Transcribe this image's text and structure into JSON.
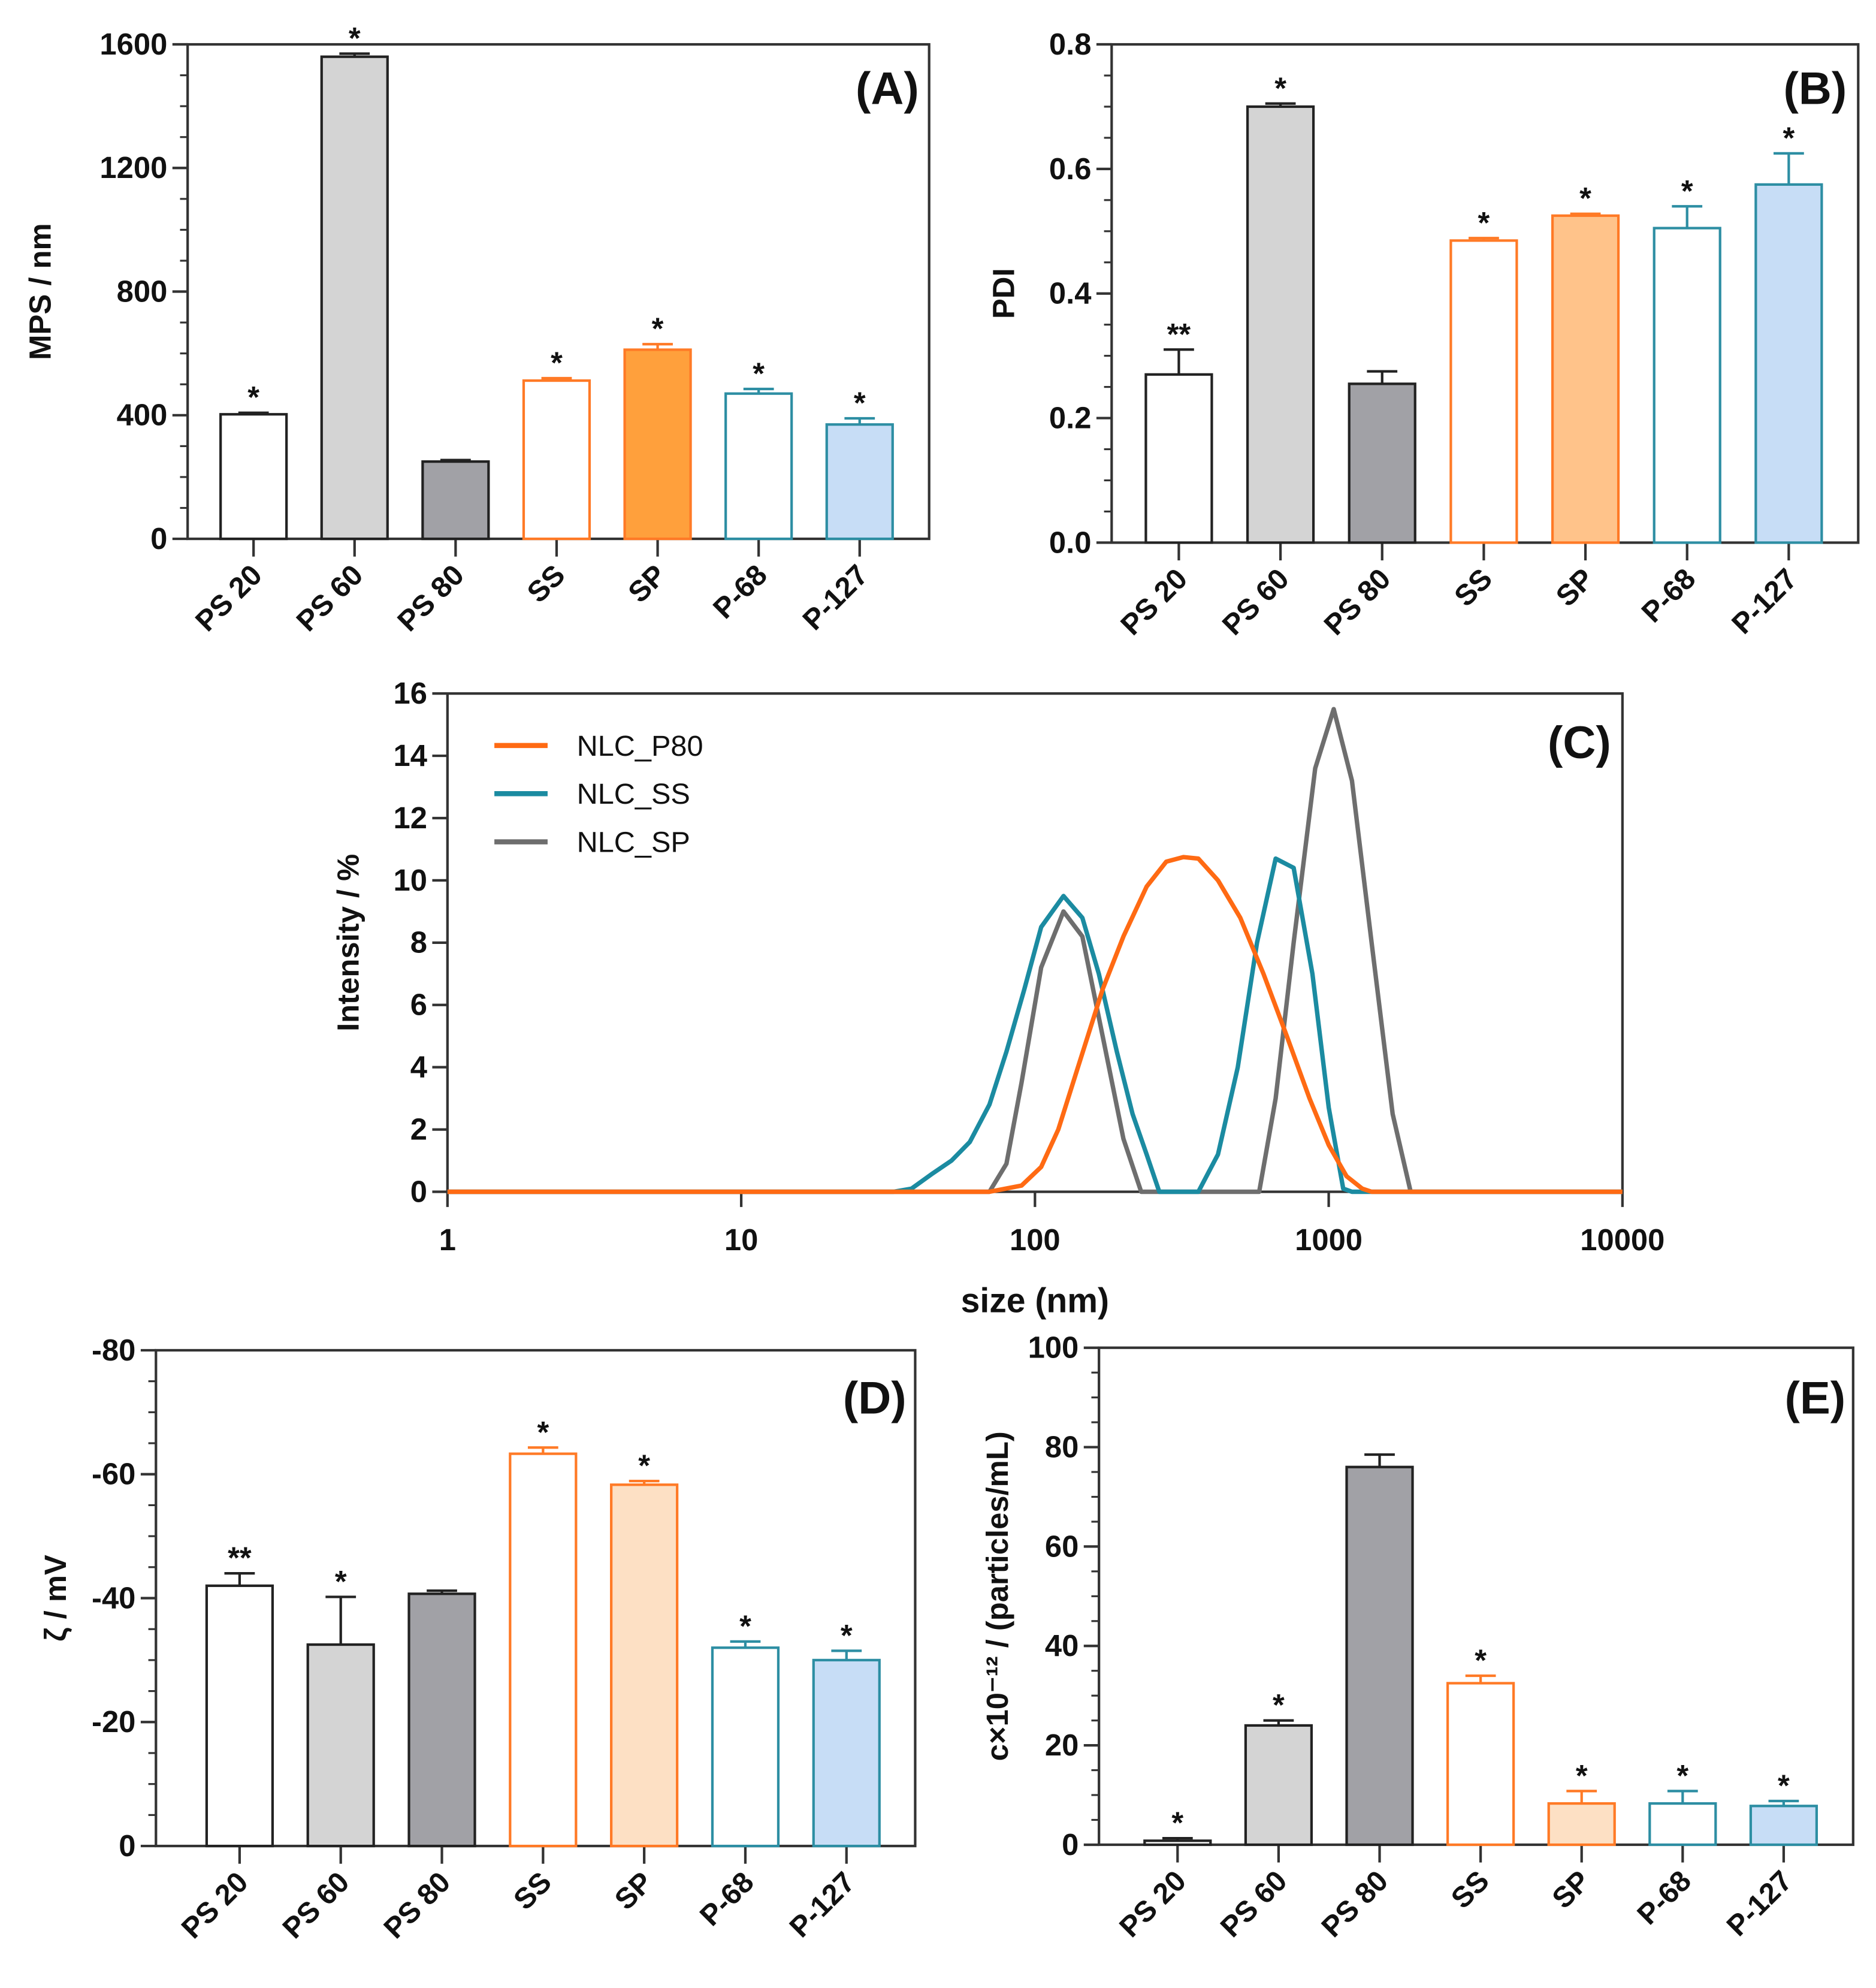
{
  "chart_data": [
    {
      "type": "bar",
      "panel": "(A)",
      "ylabel": "MPS / nm",
      "categories": [
        "PS 20",
        "PS 60",
        "PS 80",
        "SS",
        "SP",
        "P-68",
        "P-127"
      ],
      "values": [
        403,
        1560,
        250,
        512,
        612,
        470,
        370
      ],
      "errors": [
        5,
        10,
        5,
        8,
        18,
        15,
        20
      ],
      "significance": [
        "*",
        "*",
        "",
        "*",
        "*",
        "*",
        "*"
      ],
      "ylim": [
        0,
        1600
      ],
      "yticks": [
        "0",
        "400",
        "800",
        "1200",
        "1600"
      ],
      "fills": [
        "#ffffff",
        "#d4d4d4",
        "#a1a1a6",
        "#ffffff",
        "#ffa03c",
        "#ffffff",
        "#c7ddf6"
      ],
      "strokes": [
        "#222222",
        "#222222",
        "#222222",
        "#ff7a26",
        "#ff7a26",
        "#2d8ea3",
        "#2d8ea3"
      ]
    },
    {
      "type": "bar",
      "panel": "(B)",
      "ylabel": "PDI",
      "categories": [
        "PS 20",
        "PS 60",
        "PS 80",
        "SS",
        "SP",
        "P-68",
        "P-127"
      ],
      "values": [
        0.27,
        0.7,
        0.255,
        0.485,
        0.525,
        0.505,
        0.575
      ],
      "errors": [
        0.04,
        0.005,
        0.02,
        0.004,
        0.003,
        0.035,
        0.05
      ],
      "significance": [
        "**",
        "*",
        "",
        "*",
        "*",
        "*",
        "*"
      ],
      "ylim": [
        0,
        0.8
      ],
      "yticks": [
        "0.0",
        "0.2",
        "0.4",
        "0.6",
        "0.8"
      ],
      "fills": [
        "#ffffff",
        "#d4d4d4",
        "#a1a1a6",
        "#ffffff",
        "#ffc38a",
        "#ffffff",
        "#c7ddf6"
      ],
      "strokes": [
        "#222222",
        "#222222",
        "#222222",
        "#ff7a26",
        "#ff7a26",
        "#2d8ea3",
        "#2d8ea3"
      ]
    },
    {
      "type": "line",
      "panel": "(C)",
      "xlabel": "size (nm)",
      "ylabel": "Intensity / %",
      "xscale": "log",
      "xlim": [
        1,
        10000
      ],
      "ylim": [
        0,
        16
      ],
      "xticks": [
        "1",
        "10",
        "100",
        "1000",
        "10000"
      ],
      "yticks": [
        "0",
        "2",
        "4",
        "6",
        "8",
        "10",
        "12",
        "14",
        "16"
      ],
      "legend_position": "top-left",
      "series": [
        {
          "name": "NLC_P80",
          "color": "#ff6a13",
          "x": [
            1,
            70,
            90,
            105,
            120,
            140,
            170,
            200,
            240,
            280,
            320,
            360,
            420,
            500,
            600,
            720,
            860,
            1000,
            1150,
            1300,
            1400,
            10000
          ],
          "y": [
            0,
            0,
            0.2,
            0.8,
            2,
            4,
            6.5,
            8.2,
            9.8,
            10.6,
            10.75,
            10.7,
            10,
            8.8,
            7,
            5,
            3,
            1.5,
            0.5,
            0.1,
            0,
            0
          ]
        },
        {
          "name": "NLC_SS",
          "color": "#1b8ba1",
          "x": [
            1,
            33,
            38,
            45,
            52,
            60,
            70,
            80,
            92,
            105,
            125,
            145,
            165,
            190,
            215,
            240,
            265,
            360,
            420,
            490,
            570,
            660,
            760,
            880,
            1000,
            1120,
            1200,
            10000
          ],
          "y": [
            0,
            0,
            0.1,
            0.6,
            1,
            1.6,
            2.8,
            4.5,
            6.5,
            8.5,
            9.5,
            8.8,
            7,
            4.5,
            2.5,
            1.2,
            0,
            0,
            1.2,
            4,
            8,
            10.7,
            10.4,
            7,
            2.7,
            0.1,
            0,
            0
          ]
        },
        {
          "name": "NLC_SP",
          "color": "#6e6e6e",
          "x": [
            1,
            70,
            80,
            90,
            105,
            125,
            145,
            170,
            200,
            230,
            580,
            660,
            760,
            900,
            1040,
            1200,
            1400,
            1650,
            1900,
            10000
          ],
          "y": [
            0,
            0,
            0.9,
            3.5,
            7.2,
            9,
            8.2,
            5,
            1.7,
            0,
            0,
            3,
            8,
            13.6,
            15.5,
            13.2,
            8,
            2.5,
            0,
            0
          ]
        }
      ]
    },
    {
      "type": "bar",
      "panel": "(D)",
      "ylabel": "ζ / mV",
      "categories": [
        "PS 20",
        "PS 60",
        "PS 80",
        "SS",
        "SP",
        "P-68",
        "P-127"
      ],
      "values": [
        -42,
        -32.5,
        -40.7,
        -63.3,
        -58.3,
        -32,
        -30
      ],
      "errors": [
        2,
        7.7,
        0.5,
        1,
        0.6,
        1,
        1.5
      ],
      "significance": [
        "**",
        "*",
        "",
        "*",
        "*",
        "*",
        "*"
      ],
      "ylim": [
        0,
        -80
      ],
      "yticks": [
        "0",
        "-20",
        "-40",
        "-60",
        "-80"
      ],
      "fills": [
        "#ffffff",
        "#d4d4d4",
        "#a1a1a6",
        "#ffffff",
        "#fde0c4",
        "#ffffff",
        "#c7ddf6"
      ],
      "strokes": [
        "#222222",
        "#222222",
        "#222222",
        "#ff7a26",
        "#ff7a26",
        "#2d8ea3",
        "#2d8ea3"
      ]
    },
    {
      "type": "bar",
      "panel": "(E)",
      "ylabel": "c×10⁻¹² / (particles/mL)",
      "categories": [
        "PS 20",
        "PS 60",
        "PS 80",
        "SS",
        "SP",
        "P-68",
        "P-127"
      ],
      "values": [
        0.8,
        24,
        76,
        32.5,
        8.3,
        8.3,
        7.8
      ],
      "errors": [
        0.5,
        1,
        2.5,
        1.5,
        2.5,
        2.5,
        1
      ],
      "significance": [
        "*",
        "*",
        "",
        "*",
        "*",
        "*",
        "*"
      ],
      "ylim": [
        0,
        100
      ],
      "yticks": [
        "0",
        "20",
        "40",
        "60",
        "80",
        "100"
      ],
      "fills": [
        "#ffffff",
        "#d4d4d4",
        "#a1a1a6",
        "#ffffff",
        "#fde0c4",
        "#ffffff",
        "#c7ddf6"
      ],
      "strokes": [
        "#222222",
        "#222222",
        "#222222",
        "#ff7a26",
        "#ff7a26",
        "#2d8ea3",
        "#2d8ea3"
      ]
    }
  ]
}
